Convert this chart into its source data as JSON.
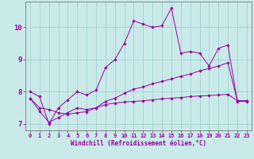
{
  "xlabel": "Windchill (Refroidissement éolien,°C)",
  "background_color": "#caeaea",
  "grid_color": "#99cccc",
  "line_color": "#990099",
  "spine_color": "#777777",
  "x_hours": [
    0,
    1,
    2,
    3,
    4,
    5,
    6,
    7,
    8,
    9,
    10,
    11,
    12,
    13,
    14,
    15,
    16,
    17,
    18,
    19,
    20,
    21,
    22,
    23
  ],
  "series1_y": [
    8.0,
    7.85,
    7.0,
    7.5,
    7.75,
    8.0,
    7.9,
    8.05,
    8.75,
    9.0,
    9.5,
    10.2,
    10.1,
    10.0,
    10.05,
    10.6,
    9.2,
    9.25,
    9.2,
    8.8,
    9.35,
    9.45,
    7.7,
    7.7
  ],
  "series2_y": [
    7.8,
    7.5,
    7.45,
    7.35,
    7.3,
    7.35,
    7.38,
    7.5,
    7.6,
    7.65,
    7.68,
    7.7,
    7.72,
    7.75,
    7.78,
    7.8,
    7.82,
    7.85,
    7.87,
    7.88,
    7.9,
    7.92,
    7.72,
    7.72
  ],
  "series3_y": [
    7.8,
    7.4,
    7.05,
    7.2,
    7.35,
    7.5,
    7.45,
    7.5,
    7.7,
    7.8,
    7.95,
    8.08,
    8.15,
    8.25,
    8.32,
    8.4,
    8.48,
    8.55,
    8.65,
    8.72,
    8.8,
    8.9,
    7.72,
    7.72
  ],
  "ylim": [
    6.8,
    10.8
  ],
  "yticks": [
    7,
    8,
    9,
    10
  ],
  "xticks": [
    0,
    1,
    2,
    3,
    4,
    5,
    6,
    7,
    8,
    9,
    10,
    11,
    12,
    13,
    14,
    15,
    16,
    17,
    18,
    19,
    20,
    21,
    22,
    23
  ],
  "tick_fontsize": 5,
  "xlabel_fontsize": 5.5
}
